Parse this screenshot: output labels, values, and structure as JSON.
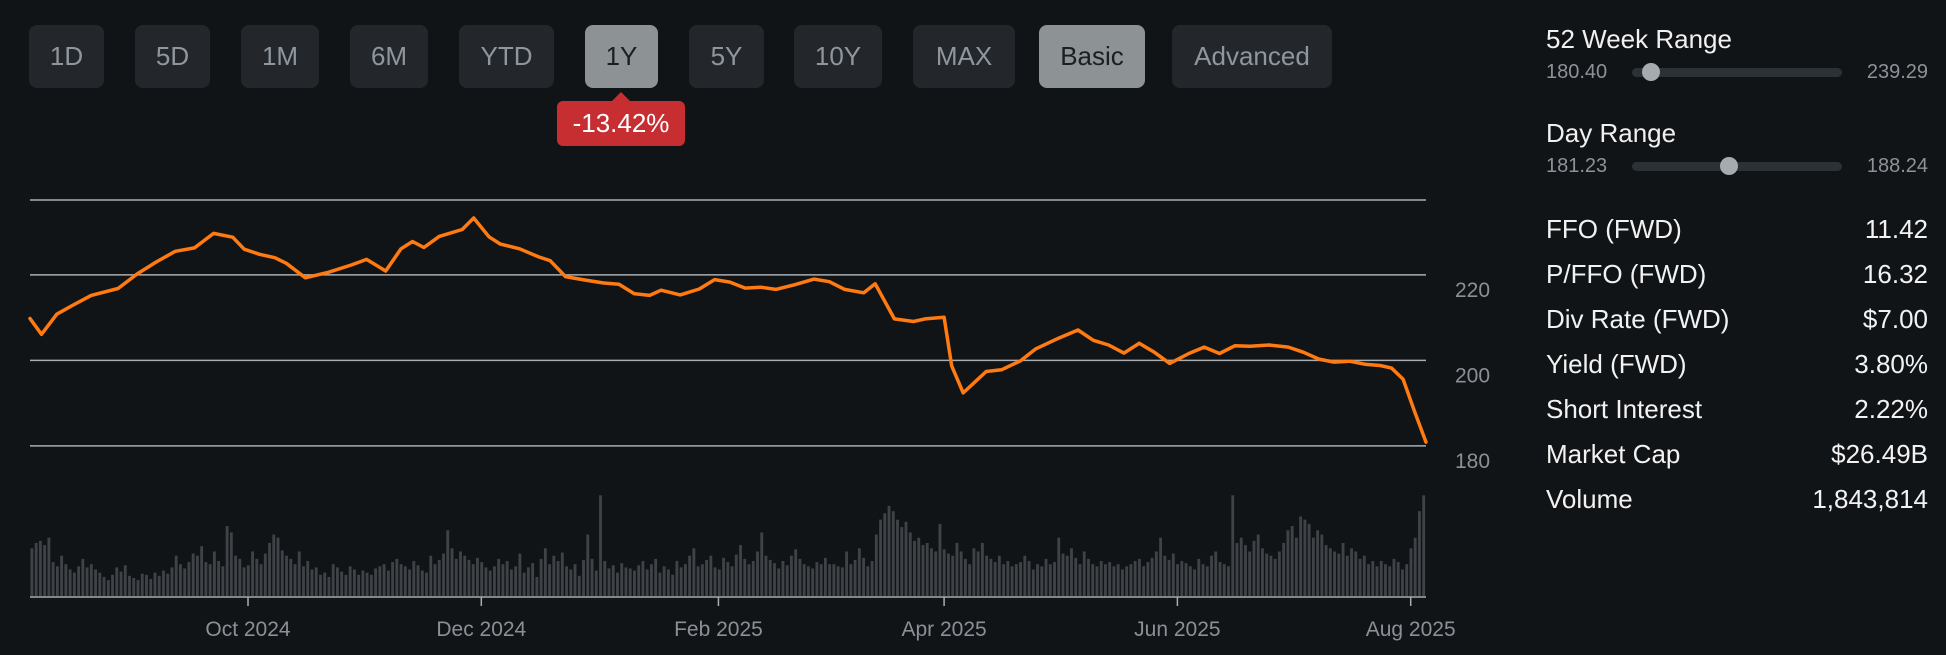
{
  "period_buttons": [
    {
      "label": "1D",
      "active": false
    },
    {
      "label": "5D",
      "active": false
    },
    {
      "label": "1M",
      "active": false
    },
    {
      "label": "6M",
      "active": false
    },
    {
      "label": "YTD",
      "active": false
    },
    {
      "label": "1Y",
      "active": true
    },
    {
      "label": "5Y",
      "active": false
    },
    {
      "label": "10Y",
      "active": false
    },
    {
      "label": "MAX",
      "active": false
    }
  ],
  "mode_buttons": [
    {
      "label": "Basic",
      "active": true
    },
    {
      "label": "Advanced",
      "active": false
    }
  ],
  "change_badge": {
    "text": "-13.42%",
    "color": "#c62e31"
  },
  "week52_range": {
    "title": "52 Week Range",
    "low": "180.40",
    "high": "239.29",
    "position": 0.09
  },
  "day_range": {
    "title": "Day Range",
    "low": "181.23",
    "high": "188.24",
    "position": 0.46
  },
  "stats": [
    {
      "label": "FFO (FWD)",
      "value": "11.42"
    },
    {
      "label": "P/FFO (FWD)",
      "value": "16.32"
    },
    {
      "label": "Div Rate (FWD)",
      "value": "$7.00"
    },
    {
      "label": "Yield (FWD)",
      "value": "3.80%"
    },
    {
      "label": "Short Interest",
      "value": "2.22%"
    },
    {
      "label": "Market Cap",
      "value": "$26.49B"
    },
    {
      "label": "Volume",
      "value": "1,843,814"
    }
  ],
  "colors": {
    "line": "#ff7a10",
    "volume": "#3f4347",
    "grid": "#a9adb1",
    "background": "#111417"
  },
  "chart_data": {
    "type": "line",
    "title": "",
    "xlabel": "",
    "ylabel": "",
    "ylim": [
      176,
      241
    ],
    "y_ticks": [
      180,
      200,
      220
    ],
    "x_range": [
      "2024-08-05",
      "2025-08-05"
    ],
    "x_ticks": [
      {
        "date": "2024-10-01",
        "label": "Oct 2024"
      },
      {
        "date": "2024-12-01",
        "label": "Dec 2024"
      },
      {
        "date": "2025-02-01",
        "label": "Feb 2025"
      },
      {
        "date": "2025-04-01",
        "label": "Apr 2025"
      },
      {
        "date": "2025-06-01",
        "label": "Jun 2025"
      },
      {
        "date": "2025-08-01",
        "label": "Aug 2025"
      }
    ],
    "grid": true,
    "series": [
      {
        "type": "line",
        "points": [
          [
            "2024-08-05",
            213.3
          ],
          [
            "2024-08-08",
            209.6
          ],
          [
            "2024-08-12",
            214.3
          ],
          [
            "2024-08-16",
            216.3
          ],
          [
            "2024-08-21",
            218.7
          ],
          [
            "2024-08-28",
            220.3
          ],
          [
            "2024-09-02",
            223.7
          ],
          [
            "2024-09-07",
            226.5
          ],
          [
            "2024-09-12",
            229.0
          ],
          [
            "2024-09-17",
            229.8
          ],
          [
            "2024-09-22",
            233.2
          ],
          [
            "2024-09-27",
            232.3
          ],
          [
            "2024-09-30",
            229.5
          ],
          [
            "2024-10-04",
            228.3
          ],
          [
            "2024-10-08",
            227.5
          ],
          [
            "2024-10-11",
            226.2
          ],
          [
            "2024-10-16",
            222.8
          ],
          [
            "2024-10-22",
            224.1
          ],
          [
            "2024-10-28",
            225.8
          ],
          [
            "2024-11-01",
            227.1
          ],
          [
            "2024-11-06",
            224.4
          ],
          [
            "2024-11-10",
            229.6
          ],
          [
            "2024-11-13",
            231.3
          ],
          [
            "2024-11-16",
            229.9
          ],
          [
            "2024-11-20",
            232.5
          ],
          [
            "2024-11-26",
            234.1
          ],
          [
            "2024-11-29",
            236.8
          ],
          [
            "2024-12-03",
            232.4
          ],
          [
            "2024-12-06",
            230.7
          ],
          [
            "2024-12-11",
            229.6
          ],
          [
            "2024-12-16",
            227.7
          ],
          [
            "2024-12-19",
            226.8
          ],
          [
            "2024-12-23",
            223.1
          ],
          [
            "2024-12-28",
            222.3
          ],
          [
            "2025-01-02",
            221.6
          ],
          [
            "2025-01-06",
            221.3
          ],
          [
            "2025-01-10",
            219.1
          ],
          [
            "2025-01-14",
            218.7
          ],
          [
            "2025-01-17",
            219.9
          ],
          [
            "2025-01-22",
            218.8
          ],
          [
            "2025-01-27",
            220.2
          ],
          [
            "2025-01-31",
            222.4
          ],
          [
            "2025-02-04",
            221.8
          ],
          [
            "2025-02-08",
            220.4
          ],
          [
            "2025-02-12",
            220.6
          ],
          [
            "2025-02-16",
            220.1
          ],
          [
            "2025-02-21",
            221.2
          ],
          [
            "2025-02-26",
            222.5
          ],
          [
            "2025-03-02",
            221.9
          ],
          [
            "2025-03-06",
            220.1
          ],
          [
            "2025-03-11",
            219.3
          ],
          [
            "2025-03-14",
            221.4
          ],
          [
            "2025-03-19",
            213.2
          ],
          [
            "2025-03-24",
            212.6
          ],
          [
            "2025-03-27",
            213.2
          ],
          [
            "2025-04-01",
            213.6
          ],
          [
            "2025-04-03",
            202.2
          ],
          [
            "2025-04-06",
            195.9
          ],
          [
            "2025-04-09",
            198.4
          ],
          [
            "2025-04-12",
            200.9
          ],
          [
            "2025-04-16",
            201.3
          ],
          [
            "2025-04-21",
            203.4
          ],
          [
            "2025-04-25",
            206.2
          ],
          [
            "2025-05-01",
            208.7
          ],
          [
            "2025-05-06",
            210.6
          ],
          [
            "2025-05-10",
            208.2
          ],
          [
            "2025-05-14",
            207.1
          ],
          [
            "2025-05-18",
            205.2
          ],
          [
            "2025-05-22",
            207.5
          ],
          [
            "2025-05-26",
            205.4
          ],
          [
            "2025-05-30",
            202.8
          ],
          [
            "2025-06-04",
            205.1
          ],
          [
            "2025-06-08",
            206.6
          ],
          [
            "2025-06-12",
            205.1
          ],
          [
            "2025-06-16",
            206.9
          ],
          [
            "2025-06-20",
            206.8
          ],
          [
            "2025-06-25",
            207.1
          ],
          [
            "2025-06-30",
            206.6
          ],
          [
            "2025-07-04",
            205.4
          ],
          [
            "2025-07-08",
            203.8
          ],
          [
            "2025-07-12",
            203.1
          ],
          [
            "2025-07-16",
            203.3
          ],
          [
            "2025-07-20",
            202.6
          ],
          [
            "2025-07-24",
            202.3
          ],
          [
            "2025-07-27",
            201.7
          ],
          [
            "2025-07-30",
            199.1
          ],
          [
            "2025-08-02",
            191.6
          ],
          [
            "2025-08-05",
            184.4
          ]
        ]
      }
    ],
    "volume": {
      "type": "bar",
      "ylim": [
        0,
        1
      ],
      "values": [
        0.45,
        0.5,
        0.52,
        0.48,
        0.55,
        0.32,
        0.28,
        0.38,
        0.3,
        0.25,
        0.22,
        0.28,
        0.35,
        0.27,
        0.3,
        0.25,
        0.22,
        0.18,
        0.15,
        0.2,
        0.27,
        0.23,
        0.29,
        0.19,
        0.17,
        0.15,
        0.21,
        0.2,
        0.16,
        0.22,
        0.19,
        0.24,
        0.21,
        0.27,
        0.38,
        0.3,
        0.26,
        0.32,
        0.4,
        0.38,
        0.47,
        0.32,
        0.3,
        0.42,
        0.33,
        0.28,
        0.66,
        0.6,
        0.38,
        0.35,
        0.27,
        0.29,
        0.42,
        0.35,
        0.3,
        0.4,
        0.5,
        0.58,
        0.55,
        0.43,
        0.38,
        0.35,
        0.3,
        0.42,
        0.28,
        0.33,
        0.25,
        0.27,
        0.2,
        0.22,
        0.18,
        0.3,
        0.27,
        0.23,
        0.2,
        0.28,
        0.25,
        0.2,
        0.24,
        0.22,
        0.2,
        0.26,
        0.28,
        0.3,
        0.24,
        0.32,
        0.35,
        0.3,
        0.28,
        0.25,
        0.33,
        0.29,
        0.24,
        0.22,
        0.38,
        0.3,
        0.34,
        0.4,
        0.62,
        0.45,
        0.35,
        0.42,
        0.38,
        0.34,
        0.3,
        0.36,
        0.32,
        0.27,
        0.24,
        0.28,
        0.35,
        0.3,
        0.33,
        0.25,
        0.28,
        0.4,
        0.22,
        0.27,
        0.31,
        0.18,
        0.35,
        0.45,
        0.3,
        0.38,
        0.33,
        0.41,
        0.28,
        0.25,
        0.3,
        0.19,
        0.34,
        0.58,
        0.35,
        0.24,
        0.95,
        0.33,
        0.26,
        0.29,
        0.22,
        0.31,
        0.27,
        0.26,
        0.24,
        0.29,
        0.33,
        0.25,
        0.3,
        0.35,
        0.22,
        0.28,
        0.25,
        0.2,
        0.33,
        0.27,
        0.3,
        0.38,
        0.45,
        0.28,
        0.3,
        0.34,
        0.38,
        0.27,
        0.25,
        0.36,
        0.32,
        0.28,
        0.39,
        0.48,
        0.35,
        0.3,
        0.33,
        0.42,
        0.6,
        0.38,
        0.34,
        0.31,
        0.26,
        0.33,
        0.29,
        0.38,
        0.44,
        0.35,
        0.3,
        0.28,
        0.26,
        0.32,
        0.3,
        0.36,
        0.3,
        0.3,
        0.28,
        0.27,
        0.42,
        0.3,
        0.34,
        0.45,
        0.36,
        0.28,
        0.33,
        0.58,
        0.72,
        0.78,
        0.85,
        0.8,
        0.72,
        0.65,
        0.7,
        0.6,
        0.52,
        0.55,
        0.48,
        0.5,
        0.45,
        0.42,
        0.68,
        0.44,
        0.4,
        0.38,
        0.5,
        0.42,
        0.35,
        0.3,
        0.45,
        0.42,
        0.5,
        0.38,
        0.35,
        0.32,
        0.38,
        0.3,
        0.33,
        0.28,
        0.3,
        0.32,
        0.38,
        0.33,
        0.25,
        0.3,
        0.28,
        0.35,
        0.3,
        0.32,
        0.55,
        0.4,
        0.38,
        0.45,
        0.36,
        0.3,
        0.42,
        0.35,
        0.3,
        0.28,
        0.33,
        0.3,
        0.32,
        0.28,
        0.3,
        0.25,
        0.28,
        0.3,
        0.33,
        0.35,
        0.28,
        0.32,
        0.36,
        0.42,
        0.55,
        0.38,
        0.34,
        0.4,
        0.3,
        0.33,
        0.31,
        0.28,
        0.25,
        0.35,
        0.3,
        0.28,
        0.38,
        0.42,
        0.32,
        0.3,
        0.28,
        0.95,
        0.5,
        0.55,
        0.48,
        0.42,
        0.52,
        0.58,
        0.45,
        0.4,
        0.38,
        0.35,
        0.42,
        0.5,
        0.62,
        0.66,
        0.55,
        0.75,
        0.72,
        0.68,
        0.55,
        0.62,
        0.58,
        0.48,
        0.45,
        0.42,
        0.4,
        0.5,
        0.38,
        0.45,
        0.42,
        0.35,
        0.38,
        0.3,
        0.33,
        0.28,
        0.33,
        0.3,
        0.28,
        0.35,
        0.32,
        0.25,
        0.3,
        0.45,
        0.55,
        0.8,
        0.95
      ]
    }
  }
}
